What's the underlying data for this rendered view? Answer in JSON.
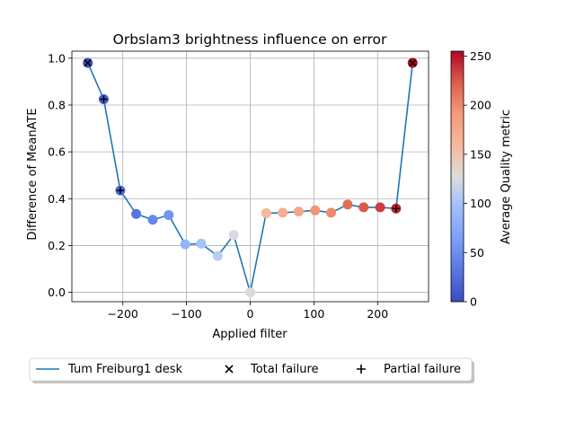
{
  "chart_data": {
    "type": "line",
    "title": "Orbslam3 brightness influence on error",
    "xlabel": "Applied filter",
    "ylabel": "Difference of MeanATE",
    "xlim": [
      -280,
      280
    ],
    "ylim": [
      -0.04,
      1.03
    ],
    "xticks": [
      -200,
      -100,
      0,
      100,
      200
    ],
    "yticks": [
      0.0,
      0.2,
      0.4,
      0.6,
      0.8,
      1.0
    ],
    "grid": true,
    "series": [
      {
        "name": "Tum Freiburg1 desk",
        "color": "#1f77b4",
        "x": [
          -255,
          -230,
          -204,
          -179,
          -153,
          -128,
          -102,
          -77,
          -51,
          -26,
          0,
          25,
          51,
          76,
          102,
          127,
          153,
          178,
          204,
          229,
          255
        ],
        "y": [
          0.98,
          0.825,
          0.435,
          0.335,
          0.31,
          0.33,
          0.205,
          0.208,
          0.155,
          0.245,
          0.0,
          0.338,
          0.34,
          0.345,
          0.35,
          0.34,
          0.375,
          0.363,
          0.363,
          0.358,
          0.98
        ],
        "quality": [
          0,
          10,
          20,
          30,
          45,
          55,
          85,
          100,
          110,
          125,
          130,
          160,
          170,
          180,
          195,
          200,
          215,
          225,
          235,
          245,
          255
        ],
        "markers": [
          "total",
          "partial",
          "partial",
          "",
          "",
          "",
          "",
          "",
          "",
          "",
          "",
          "",
          "",
          "",
          "",
          "",
          "",
          "",
          "",
          "partial",
          "total"
        ]
      }
    ],
    "colorbar": {
      "label": "Average Quality metric",
      "range": [
        0,
        255
      ],
      "ticks": [
        0,
        50,
        100,
        150,
        200,
        250
      ],
      "colormap": "coolwarm"
    },
    "legend": {
      "placement": "bottom",
      "entries": [
        "Tum Freiburg1 desk",
        "Total failure",
        "Partial failure"
      ]
    }
  }
}
